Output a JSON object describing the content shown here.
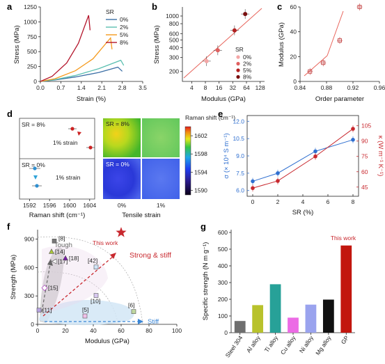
{
  "colors": {
    "sr0": "#3a6ea5",
    "sr2": "#5bbfb0",
    "sr5": "#f59a1d",
    "sr8": "#b3152b",
    "fit": "#e8635a",
    "blue": "#2f6fd0",
    "red": "#c8282e",
    "stiffBlue": "#3a86d6"
  },
  "chart_data": [
    {
      "id": "a",
      "panel_label": "a",
      "type": "line",
      "xlabel": "Strain (%)",
      "ylabel": "Stress (MPa)",
      "xlim": [
        0,
        3.5
      ],
      "ylim": [
        0,
        1250
      ],
      "xticks": [
        "0.0",
        "0.7",
        "1.4",
        "2.1",
        "2.8",
        "3.5"
      ],
      "yticks": [
        "0",
        "250",
        "500",
        "750",
        "1000",
        "1250"
      ],
      "legend_title": "SR",
      "series": [
        {
          "name": "0%",
          "color": "#3a6ea5",
          "points": [
            [
              0,
              0
            ],
            [
              0.5,
              25
            ],
            [
              1.2,
              75
            ],
            [
              2.0,
              150
            ],
            [
              2.65,
              240
            ],
            [
              2.8,
              170
            ]
          ]
        },
        {
          "name": "2%",
          "color": "#5bbfb0",
          "points": [
            [
              0,
              0
            ],
            [
              0.5,
              30
            ],
            [
              1.2,
              100
            ],
            [
              2.0,
              215
            ],
            [
              2.75,
              355
            ],
            [
              2.85,
              270
            ]
          ]
        },
        {
          "name": "5%",
          "color": "#f59a1d",
          "points": [
            [
              0,
              0
            ],
            [
              0.5,
              45
            ],
            [
              1.2,
              180
            ],
            [
              1.8,
              380
            ],
            [
              2.4,
              730
            ],
            [
              2.45,
              540
            ]
          ]
        },
        {
          "name": "8%",
          "color": "#b3152b",
          "points": [
            [
              0,
              0
            ],
            [
              0.4,
              85
            ],
            [
              0.9,
              310
            ],
            [
              1.3,
              640
            ],
            [
              1.65,
              1110
            ],
            [
              1.7,
              860
            ]
          ]
        }
      ]
    },
    {
      "id": "b",
      "panel_label": "b",
      "type": "scatter",
      "xlabel": "Modulus (GPa)",
      "ylabel": "Stress (MPa)",
      "xscale": "log",
      "yscale": "log",
      "xticks": [
        "4",
        "8",
        "16",
        "32",
        "64",
        "128"
      ],
      "yticks": [
        "200",
        "300",
        "400",
        "500",
        "600",
        "800",
        "1000"
      ],
      "legend_title": "SR",
      "series": [
        {
          "name": "0%",
          "color": "#f4a6a6",
          "x": 8.5,
          "y": 270
        },
        {
          "name": "2%",
          "color": "#e06060",
          "x": 15,
          "y": 370
        },
        {
          "name": "5%",
          "color": "#b22020",
          "x": 35,
          "y": 660
        },
        {
          "name": "8%",
          "color": "#7a0f0f",
          "x": 60,
          "y": 1060
        }
      ]
    },
    {
      "id": "c",
      "panel_label": "c",
      "type": "scatter",
      "xlabel": "Order parameter",
      "ylabel": "Modulus (GPa)",
      "xlim": [
        0.84,
        0.96
      ],
      "ylim": [
        0,
        60
      ],
      "xticks": [
        "0.84",
        "0.88",
        "0.92",
        "0.96"
      ],
      "yticks": [
        "0",
        "20",
        "40",
        "60"
      ],
      "points": [
        [
          0.855,
          8
        ],
        [
          0.875,
          15
        ],
        [
          0.9,
          33
        ],
        [
          0.93,
          60
        ]
      ]
    },
    {
      "id": "d",
      "panel_label": "d",
      "type": "heatmap",
      "xlabel_left": "Raman shift (cm⁻¹)",
      "xlabel_right": "Tensile strain",
      "xticks_left": [
        "1592",
        "1596",
        "1600",
        "1604"
      ],
      "xticks_right": [
        "0%",
        "1%"
      ],
      "top_label": "SR = 8%",
      "bottom_label": "SR = 0%",
      "annotation": "1% strain",
      "colorbar_title": "Raman shift (cm⁻¹)",
      "colorbar_ticks": [
        "1590",
        "1594",
        "1598",
        "1602"
      ],
      "points_sr8": [
        [
          1601.8,
          "0%"
        ],
        [
          1602.5,
          "1%"
        ]
      ],
      "points_sr0": [
        [
          1597.0,
          "0%"
        ],
        [
          1596.5,
          "1%"
        ]
      ]
    },
    {
      "id": "e",
      "panel_label": "e",
      "type": "line",
      "xlabel": "SR (%)",
      "ylabel_left": "σ (× 10⁴ S m⁻¹)",
      "ylabel_right": "κ (W m⁻¹ K⁻¹)",
      "x": [
        0,
        2,
        5,
        8
      ],
      "xticks": [
        "0",
        "2",
        "4",
        "6",
        "8"
      ],
      "yticks_left": [
        "6.0",
        "7.5",
        "9.0",
        "10.5",
        "12.0"
      ],
      "yticks_right": [
        "45",
        "60",
        "75",
        "90",
        "105"
      ],
      "series": [
        {
          "name": "σ",
          "axis": "left",
          "values": [
            6.8,
            7.5,
            9.4,
            10.4
          ]
        },
        {
          "name": "κ",
          "axis": "right",
          "values": [
            44,
            51,
            75,
            102
          ]
        }
      ]
    },
    {
      "id": "f",
      "panel_label": "f",
      "type": "scatter",
      "xlabel": "Modulus (GPa)",
      "ylabel": "Strength (MPa)",
      "xlim": [
        0,
        100
      ],
      "ylim": [
        0,
        1000
      ],
      "xticks": [
        "0",
        "20",
        "40",
        "60",
        "80",
        "100"
      ],
      "yticks": [
        "0",
        "300",
        "600",
        "900"
      ],
      "region_labels": [
        "Tough",
        "Stiff",
        "Strong & stiff",
        "This work"
      ],
      "points": [
        {
          "ref": "[8]",
          "x": 12,
          "y": 880
        },
        {
          "ref": "[14]",
          "x": 10,
          "y": 770
        },
        {
          "ref": "[17]",
          "x": 12,
          "y": 665
        },
        {
          "ref": "[18]",
          "x": 20,
          "y": 700
        },
        {
          "ref": "[42]",
          "x": 42,
          "y": 605
        },
        {
          "ref": "[15]",
          "x": 5,
          "y": 385
        },
        {
          "ref": "[10]",
          "x": 42,
          "y": 305
        },
        {
          "ref": "[11]",
          "x": 1,
          "y": 150
        },
        {
          "ref": "[5]",
          "x": 34,
          "y": 88
        },
        {
          "ref": "[6]",
          "x": 69,
          "y": 135
        },
        {
          "ref": "This work",
          "x": 60,
          "y": 970
        }
      ]
    },
    {
      "id": "g",
      "panel_label": "g",
      "type": "bar",
      "ylabel": "Specific strength (N m g⁻¹)",
      "ylim": [
        0,
        600
      ],
      "yticks": [
        "0",
        "100",
        "200",
        "300",
        "400",
        "500",
        "600"
      ],
      "categories": [
        "Steel 304",
        "Al alloy",
        "Ti alloy",
        "Cu alloy",
        "Ni alloy",
        "Mg alloy",
        "GP"
      ],
      "values": [
        70,
        165,
        290,
        90,
        168,
        198,
        522
      ],
      "colors": [
        "#6e6e6e",
        "#b8c22c",
        "#27a198",
        "#ec6be5",
        "#9aa3ee",
        "#111111",
        "#c2160e"
      ],
      "annotation": "This work"
    }
  ]
}
